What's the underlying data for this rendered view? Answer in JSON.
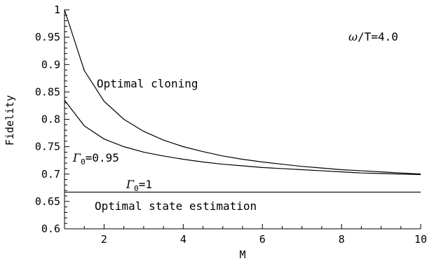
{
  "chart_data": {
    "type": "line",
    "title": "",
    "xlabel": "M",
    "ylabel": "Fidelity",
    "xlim": [
      1,
      10
    ],
    "ylim": [
      0.6,
      1.0
    ],
    "grid": false,
    "x_ticks": [
      2,
      4,
      6,
      8,
      10
    ],
    "y_ticks": [
      0.6,
      0.65,
      0.7,
      0.75,
      0.8,
      0.85,
      0.9,
      0.95,
      1
    ],
    "x_tick_labels": [
      "2",
      "4",
      "6",
      "8",
      "10"
    ],
    "y_tick_labels": [
      "0.6",
      "0.65",
      "0.7",
      "0.75",
      "0.8",
      "0.85",
      "0.9",
      "0.95",
      "1"
    ],
    "series": [
      {
        "x": [
          1,
          1.5,
          2,
          2.5,
          3,
          3.5,
          4,
          4.5,
          5,
          5.5,
          6,
          6.5,
          7,
          7.5,
          8,
          8.5,
          9,
          9.5,
          10
        ],
        "values": [
          1.0,
          0.889,
          0.833,
          0.8,
          0.778,
          0.762,
          0.75,
          0.741,
          0.733,
          0.727,
          0.722,
          0.718,
          0.714,
          0.711,
          0.708,
          0.706,
          0.704,
          0.702,
          0.7
        ]
      },
      {
        "x": [
          1,
          1.5,
          2,
          2.5,
          3,
          3.5,
          4,
          4.5,
          5,
          5.5,
          6,
          6.5,
          7,
          7.5,
          8,
          8.5,
          9,
          9.5,
          10
        ],
        "values": [
          0.835,
          0.788,
          0.764,
          0.75,
          0.74,
          0.733,
          0.727,
          0.722,
          0.718,
          0.715,
          0.712,
          0.71,
          0.708,
          0.706,
          0.704,
          0.702,
          0.701,
          0.7,
          0.699
        ]
      },
      {
        "x": [
          1,
          10
        ],
        "values": [
          0.667,
          0.667
        ]
      }
    ],
    "annotations": {
      "omega_symbol": "ω",
      "omega_rest": "/T=4.0",
      "cloning_label": "Optimal cloning",
      "gamma095_symbol": "Γ",
      "gamma095_sub": "0",
      "gamma095_rest": "=0.95",
      "gamma1_symbol": "Γ",
      "gamma1_sub": "0",
      "gamma1_rest": "=1",
      "estimation_label": "Optimal state estimation"
    }
  }
}
